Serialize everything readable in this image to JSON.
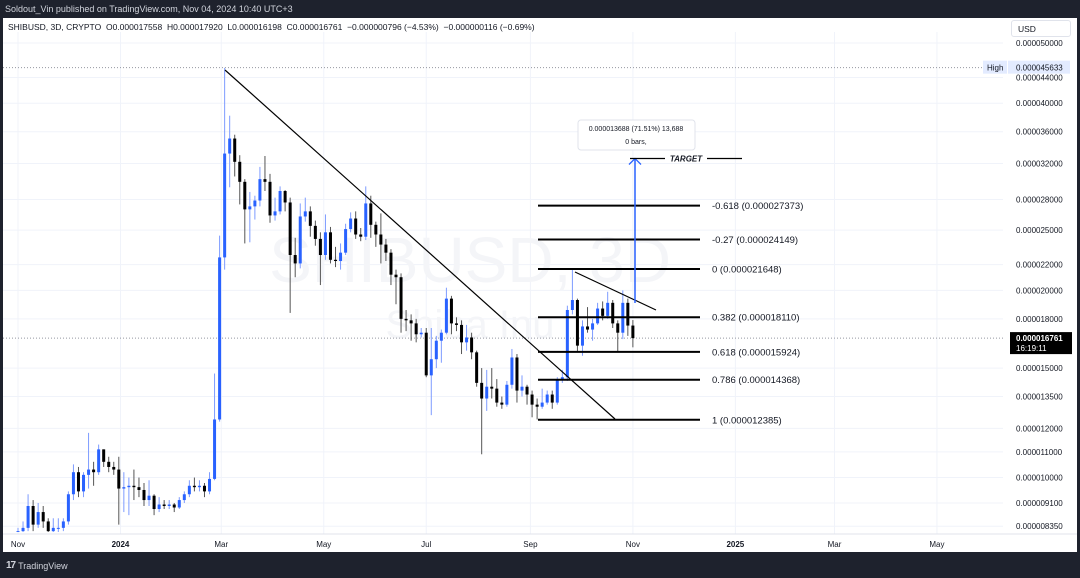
{
  "header": {
    "published": "Soldout_Vin published on TradingView.com, Nov 04, 2024 10:40 UTC+3"
  },
  "legend": {
    "symbol": "SHIBUSD, 3D, CRYPTO",
    "open": "O0.000017558",
    "high": "H0.000017920",
    "low": "L0.000016198",
    "close": "C0.000016761",
    "change": "−0.000000796 (−4.53%)",
    "change2": "−0.000000116 (−0.69%)"
  },
  "watermark": {
    "line1": "SHIBUSD, 3D",
    "line2": "Shiba Inu"
  },
  "price_axis": {
    "currency": "USD",
    "high_label": "High",
    "high_value": "0.000045633",
    "last_value": "0.000016761",
    "countdown": "16:19:11"
  },
  "footer": {
    "brand": "TradingView",
    "logo": "17"
  },
  "colors": {
    "up": "#2962ff",
    "down": "#000000",
    "grid": "#f0f3fa",
    "bg": "#ffffff"
  },
  "chart_data": {
    "type": "candlestick",
    "symbol": "SHIBUSD",
    "interval": "3D",
    "price_unit": "1e-6 USD",
    "scale": "log",
    "start_date": "2023-11-01",
    "y_ticks": [
      {
        "value": 50,
        "label": "0.000050000"
      },
      {
        "value": 44,
        "label": "0.000044000"
      },
      {
        "value": 40,
        "label": "0.000040000"
      },
      {
        "value": 36,
        "label": "0.000036000"
      },
      {
        "value": 32,
        "label": "0.000032000"
      },
      {
        "value": 28,
        "label": "0.000028000"
      },
      {
        "value": 25,
        "label": "0.000025000"
      },
      {
        "value": 22,
        "label": "0.000022000"
      },
      {
        "value": 20,
        "label": "0.000020000"
      },
      {
        "value": 18,
        "label": "0.000018000"
      },
      {
        "value": 15,
        "label": "0.000015000"
      },
      {
        "value": 13.5,
        "label": "0.000013500"
      },
      {
        "value": 12,
        "label": "0.000012000"
      },
      {
        "value": 11,
        "label": "0.000011000"
      },
      {
        "value": 10,
        "label": "0.000010000"
      },
      {
        "value": 9.1,
        "label": "0.000009100"
      },
      {
        "value": 8.35,
        "label": "0.000008350"
      }
    ],
    "x_ticks": [
      {
        "date": "2023-11-01",
        "label": "Nov",
        "bold": false
      },
      {
        "date": "2024-01-01",
        "label": "2024",
        "bold": true
      },
      {
        "date": "2024-03-01",
        "label": "Mar",
        "bold": false
      },
      {
        "date": "2024-05-01",
        "label": "May",
        "bold": false
      },
      {
        "date": "2024-07-01",
        "label": "Jul",
        "bold": false
      },
      {
        "date": "2024-09-01",
        "label": "Sep",
        "bold": false
      },
      {
        "date": "2024-11-01",
        "label": "Nov",
        "bold": false
      },
      {
        "date": "2025-01-01",
        "label": "2025",
        "bold": true
      },
      {
        "date": "2025-03-01",
        "label": "Mar",
        "bold": false
      },
      {
        "date": "2025-05-01",
        "label": "May",
        "bold": false
      }
    ],
    "high_price": 45.633,
    "last_price": 16.761,
    "ohlc": [
      [
        8.1,
        8.3,
        8.0,
        8.2
      ],
      [
        8.2,
        8.5,
        8.1,
        8.3
      ],
      [
        8.3,
        9.4,
        8.2,
        9.0
      ],
      [
        9.0,
        9.2,
        8.2,
        8.4
      ],
      [
        8.4,
        9.1,
        8.3,
        8.8
      ],
      [
        8.8,
        9.0,
        8.3,
        8.5
      ],
      [
        8.5,
        8.6,
        8.0,
        8.2
      ],
      [
        8.2,
        8.6,
        8.1,
        8.3
      ],
      [
        8.3,
        8.6,
        8.1,
        8.3
      ],
      [
        8.3,
        8.6,
        8.2,
        8.5
      ],
      [
        8.5,
        9.5,
        8.4,
        9.4
      ],
      [
        9.4,
        10.5,
        9.2,
        10.2
      ],
      [
        10.2,
        10.4,
        9.3,
        9.5
      ],
      [
        9.5,
        10.2,
        9.3,
        10.1
      ],
      [
        10.1,
        11.8,
        9.6,
        10.3
      ],
      [
        10.3,
        10.6,
        9.7,
        10.2
      ],
      [
        10.2,
        11.3,
        10.1,
        11.1
      ],
      [
        11.1,
        11.1,
        10.4,
        10.6
      ],
      [
        10.6,
        10.8,
        10.2,
        10.4
      ],
      [
        10.4,
        10.6,
        10.1,
        10.3
      ],
      [
        10.3,
        10.8,
        8.4,
        9.6
      ],
      [
        9.6,
        10.2,
        8.8,
        9.65
      ],
      [
        9.65,
        10.0,
        8.7,
        9.7
      ],
      [
        9.7,
        10.3,
        9.2,
        9.65
      ],
      [
        9.65,
        10.0,
        9.3,
        9.55
      ],
      [
        9.55,
        9.8,
        9.0,
        9.2
      ],
      [
        9.2,
        9.9,
        9.0,
        9.35
      ],
      [
        9.35,
        9.4,
        8.7,
        8.9
      ],
      [
        8.9,
        9.3,
        8.8,
        9.05
      ],
      [
        9.05,
        9.2,
        8.9,
        9.0
      ],
      [
        9.0,
        9.2,
        8.9,
        9.05
      ],
      [
        9.05,
        9.1,
        8.8,
        8.95
      ],
      [
        8.95,
        9.3,
        8.9,
        9.2
      ],
      [
        9.2,
        9.5,
        9.1,
        9.4
      ],
      [
        9.4,
        9.9,
        9.3,
        9.7
      ],
      [
        9.7,
        10.0,
        9.5,
        9.65
      ],
      [
        9.65,
        9.9,
        9.5,
        9.7
      ],
      [
        9.7,
        9.8,
        9.3,
        9.5
      ],
      [
        9.5,
        10.2,
        9.4,
        9.95
      ],
      [
        9.95,
        14.7,
        9.9,
        12.4
      ],
      [
        12.4,
        24.5,
        12.3,
        22.6
      ],
      [
        22.6,
        45.6,
        21.6,
        33.2
      ],
      [
        33.2,
        38.2,
        29.3,
        35.1
      ],
      [
        35.1,
        35.6,
        30.5,
        32.2
      ],
      [
        32.2,
        33.0,
        27.5,
        29.9
      ],
      [
        29.9,
        30.2,
        23.8,
        27.0
      ],
      [
        27.0,
        28.8,
        23.9,
        27.3
      ],
      [
        27.3,
        28.4,
        26.0,
        27.9
      ],
      [
        27.9,
        31.6,
        27.3,
        30.2
      ],
      [
        30.2,
        32.9,
        28.9,
        29.9
      ],
      [
        29.9,
        30.8,
        25.7,
        26.4
      ],
      [
        26.4,
        28.2,
        25.9,
        26.8
      ],
      [
        26.8,
        29.4,
        26.5,
        28.9
      ],
      [
        28.9,
        29.0,
        26.8,
        27.7
      ],
      [
        27.7,
        28.2,
        18.4,
        22.8
      ],
      [
        22.8,
        24.3,
        21.0,
        22.1
      ],
      [
        22.1,
        27.6,
        21.7,
        26.3
      ],
      [
        26.3,
        28.2,
        25.8,
        26.8
      ],
      [
        26.8,
        27.3,
        24.4,
        25.4
      ],
      [
        25.4,
        25.9,
        23.6,
        24.2
      ],
      [
        24.2,
        24.8,
        20.4,
        22.8
      ],
      [
        22.8,
        26.5,
        22.4,
        24.8
      ],
      [
        24.8,
        25.3,
        22.1,
        22.4
      ],
      [
        22.4,
        23.5,
        21.8,
        22.3
      ],
      [
        22.3,
        23.8,
        21.6,
        23.0
      ],
      [
        23.0,
        25.6,
        22.8,
        25.1
      ],
      [
        25.1,
        26.7,
        24.8,
        26.1
      ],
      [
        26.1,
        26.8,
        24.2,
        24.6
      ],
      [
        24.6,
        25.2,
        24.0,
        24.4
      ],
      [
        24.4,
        29.4,
        24.1,
        27.6
      ],
      [
        27.6,
        28.4,
        24.3,
        25.5
      ],
      [
        25.5,
        25.8,
        23.5,
        24.6
      ],
      [
        24.6,
        26.6,
        22.1,
        23.7
      ],
      [
        23.7,
        24.2,
        22.3,
        23.0
      ],
      [
        23.0,
        23.3,
        20.4,
        21.2
      ],
      [
        21.2,
        21.6,
        19.0,
        21.0
      ],
      [
        21.0,
        21.3,
        17.1,
        18.0
      ],
      [
        18.0,
        18.6,
        17.2,
        17.9
      ],
      [
        17.9,
        18.3,
        16.6,
        17.7
      ],
      [
        17.7,
        18.0,
        16.5,
        17.0
      ],
      [
        17.0,
        17.4,
        16.8,
        17.1
      ],
      [
        17.1,
        17.4,
        14.5,
        14.6
      ],
      [
        14.6,
        17.4,
        12.6,
        15.5
      ],
      [
        15.5,
        16.9,
        15.0,
        16.6
      ],
      [
        16.6,
        17.3,
        15.3,
        17.1
      ],
      [
        17.1,
        20.2,
        17.0,
        19.4
      ],
      [
        19.4,
        19.6,
        17.0,
        17.7
      ],
      [
        17.7,
        18.1,
        17.2,
        17.6
      ],
      [
        17.6,
        17.9,
        15.8,
        16.5
      ],
      [
        16.5,
        17.6,
        16.0,
        16.8
      ],
      [
        16.8,
        17.1,
        15.5,
        15.9
      ],
      [
        15.9,
        16.0,
        14.0,
        14.2
      ],
      [
        14.2,
        15.0,
        10.9,
        13.4
      ],
      [
        13.4,
        14.9,
        12.8,
        14.0
      ],
      [
        14.0,
        15.0,
        13.4,
        13.9
      ],
      [
        13.9,
        14.4,
        13.0,
        13.2
      ],
      [
        13.2,
        13.5,
        12.9,
        13.1
      ],
      [
        13.1,
        14.3,
        13.0,
        14.1
      ],
      [
        14.1,
        16.1,
        13.9,
        15.6
      ],
      [
        15.6,
        15.8,
        13.2,
        13.8
      ],
      [
        13.8,
        14.6,
        13.5,
        14.0
      ],
      [
        14.0,
        14.1,
        13.1,
        13.6
      ],
      [
        13.6,
        13.8,
        12.5,
        13.1
      ],
      [
        13.1,
        13.4,
        12.4,
        13.0
      ],
      [
        13.0,
        13.9,
        12.9,
        13.2
      ],
      [
        13.2,
        13.8,
        13.1,
        13.6
      ],
      [
        13.6,
        13.8,
        12.9,
        13.2
      ],
      [
        13.2,
        14.5,
        13.1,
        14.4
      ],
      [
        14.4,
        14.9,
        14.2,
        14.5
      ],
      [
        14.5,
        18.9,
        14.3,
        18.6
      ],
      [
        18.6,
        21.6,
        18.3,
        19.3
      ],
      [
        19.3,
        19.4,
        15.9,
        16.3
      ],
      [
        16.3,
        17.9,
        15.7,
        17.5
      ],
      [
        17.5,
        18.8,
        17.1,
        17.3
      ],
      [
        17.3,
        18.0,
        16.6,
        17.7
      ],
      [
        17.7,
        19.1,
        17.6,
        18.7
      ],
      [
        18.7,
        19.2,
        17.9,
        18.2
      ],
      [
        18.2,
        19.9,
        18.0,
        19.1
      ],
      [
        19.1,
        19.3,
        17.4,
        17.7
      ],
      [
        17.7,
        17.9,
        15.9,
        17.1
      ],
      [
        17.1,
        20.0,
        16.7,
        19.1
      ],
      [
        19.1,
        19.4,
        16.9,
        17.558
      ],
      [
        17.558,
        17.92,
        16.198,
        16.761
      ]
    ],
    "fib_levels": [
      {
        "price": 27.373,
        "label": "-0.618 (0.000027373)"
      },
      {
        "price": 24.149,
        "label": "-0.27 (0.000024149)"
      },
      {
        "price": 21.648,
        "label": "0 (0.000021648)"
      },
      {
        "price": 18.11,
        "label": "0.382 (0.000018110)"
      },
      {
        "price": 15.924,
        "label": "0.618 (0.000015924)"
      },
      {
        "price": 14.368,
        "label": "0.786 (0.000014368)"
      },
      {
        "price": 12.385,
        "label": "1 (0.000012385)"
      }
    ],
    "target": {
      "label": "TARGET",
      "price": 32.6
    },
    "measure": {
      "line1": "0.000013688 (71.51%) 13,688",
      "line2": "0 bars,"
    }
  }
}
